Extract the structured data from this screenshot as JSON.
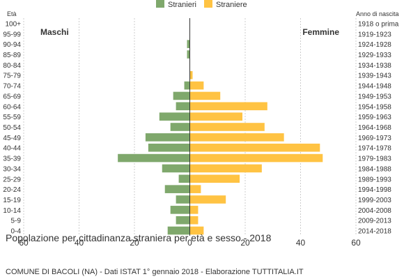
{
  "chart_data": {
    "type": "bar",
    "title": "Popolazione per cittadinanza straniera per età e sesso - 2018",
    "subtitle": "COMUNE DI BACOLI (NA) - Dati ISTAT 1° gennaio 2018 - Elaborazione TUTTITALIA.IT",
    "left_axis_title": "Età",
    "right_axis_title": "Anno di nascita",
    "left_side_label": "Maschi",
    "right_side_label": "Femmine",
    "legend": [
      {
        "name": "Stranieri",
        "color": "#7fa86c"
      },
      {
        "name": "Straniere",
        "color": "#ffc343"
      }
    ],
    "age_groups": [
      "100+",
      "95-99",
      "90-94",
      "85-89",
      "80-84",
      "75-79",
      "70-74",
      "65-69",
      "60-64",
      "55-59",
      "50-54",
      "45-49",
      "40-44",
      "35-39",
      "30-34",
      "25-29",
      "20-24",
      "15-19",
      "10-14",
      "5-9",
      "0-4"
    ],
    "birth_years": [
      "1918 o prima",
      "1919-1923",
      "1924-1928",
      "1929-1933",
      "1934-1938",
      "1939-1943",
      "1944-1948",
      "1949-1953",
      "1954-1958",
      "1959-1963",
      "1964-1968",
      "1969-1973",
      "1974-1978",
      "1979-1983",
      "1984-1988",
      "1989-1993",
      "1994-1998",
      "1999-2003",
      "2004-2008",
      "2009-2013",
      "2014-2018"
    ],
    "series": [
      {
        "name": "Stranieri",
        "values": [
          0,
          0,
          1,
          1,
          0,
          0,
          2,
          6,
          5,
          11,
          7,
          16,
          15,
          26,
          10,
          4,
          9,
          5,
          7,
          5,
          8
        ]
      },
      {
        "name": "Straniere",
        "values": [
          0,
          0,
          0,
          0,
          0,
          1,
          5,
          11,
          28,
          19,
          27,
          34,
          47,
          48,
          26,
          18,
          4,
          13,
          3,
          3,
          5
        ]
      }
    ],
    "x_ticks": [
      "60",
      "40",
      "20",
      "0",
      "20",
      "40",
      "60"
    ],
    "x_range": [
      -60,
      60
    ],
    "grid": true
  }
}
